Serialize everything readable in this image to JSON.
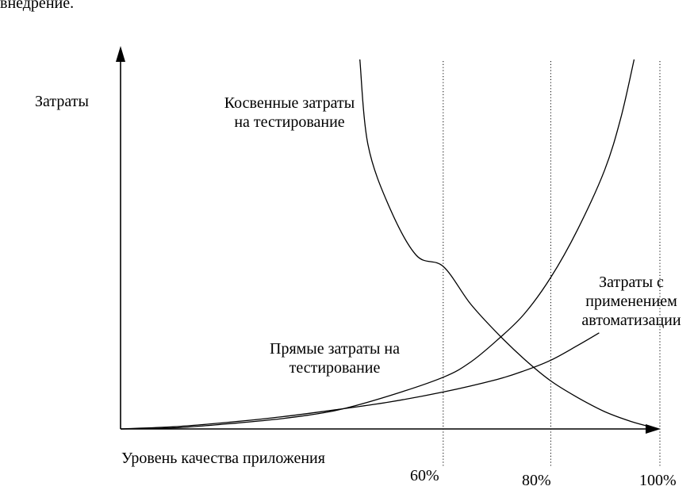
{
  "top_fragment": "внедрение.",
  "chart_data": {
    "type": "line",
    "ylabel": "Затраты",
    "xlabel": "Уровень качества приложения",
    "x_ticks": [
      "60%",
      "80%",
      "100%"
    ],
    "x_tick_values": [
      60,
      80,
      100
    ],
    "xlim": [
      0,
      100
    ],
    "series": [
      {
        "name_lines": [
          "Косвенные затраты",
          "на тестирование"
        ],
        "x": [
          44.5,
          46,
          50,
          55,
          60,
          65,
          70,
          75,
          80,
          85,
          90,
          95,
          100
        ],
        "y": [
          100,
          77,
          60,
          47,
          44,
          34,
          26,
          19,
          13,
          8.5,
          4.7,
          2,
          0
        ]
      },
      {
        "name_lines": [
          "Прямые затраты на",
          "тестирование"
        ],
        "x": [
          0,
          10,
          20,
          30,
          40,
          50,
          60,
          65,
          70,
          75,
          80,
          85,
          90,
          93,
          95.5
        ],
        "y": [
          0,
          0.3,
          1.4,
          2.8,
          5,
          9,
          14,
          18,
          24,
          31,
          41,
          54,
          70,
          84,
          100
        ]
      },
      {
        "name_lines": [
          "Затраты с",
          "применением",
          "автоматизации"
        ],
        "x": [
          0,
          10,
          20,
          30,
          40,
          50,
          60,
          70,
          75,
          80,
          85,
          89
        ],
        "y": [
          0,
          0.6,
          1.8,
          3.3,
          5.2,
          7.3,
          10,
          13.4,
          15.7,
          18.6,
          22.6,
          26
        ]
      }
    ],
    "vertical_guides_at": [
      60,
      80,
      100
    ],
    "grid": false
  }
}
